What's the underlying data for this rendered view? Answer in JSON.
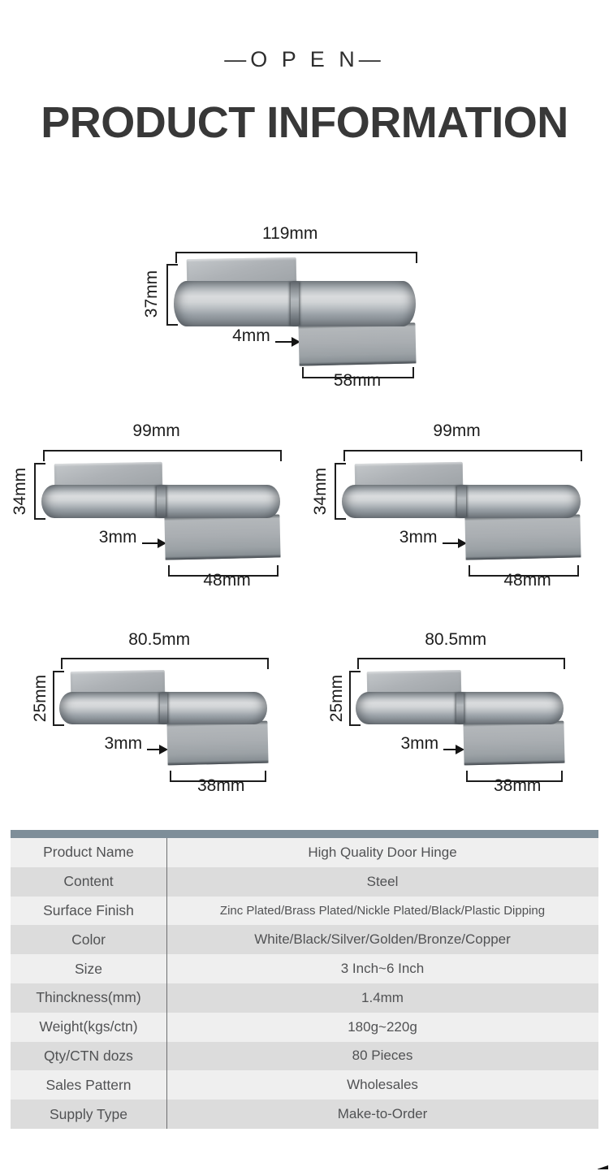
{
  "header": {
    "eyebrow": "—O P E N—",
    "title": "PRODUCT INFORMATION"
  },
  "hinges": [
    {
      "width_label": "119mm",
      "height_label": "37mm",
      "thickness_label": "4mm",
      "leaf_label": "58mm"
    },
    {
      "width_label": "99mm",
      "height_label": "34mm",
      "thickness_label": "3mm",
      "leaf_label": "48mm"
    },
    {
      "width_label": "99mm",
      "height_label": "34mm",
      "thickness_label": "3mm",
      "leaf_label": "48mm"
    },
    {
      "width_label": "80.5mm",
      "height_label": "25mm",
      "thickness_label": "3mm",
      "leaf_label": "38mm"
    },
    {
      "width_label": "80.5mm",
      "height_label": "25mm",
      "thickness_label": "3mm",
      "leaf_label": "38mm"
    }
  ],
  "spec_table": {
    "rows": [
      {
        "label": "Product Name",
        "value": "High Quality Door Hinge"
      },
      {
        "label": "Content",
        "value": "Steel"
      },
      {
        "label": "Surface Finish",
        "value": "Zinc Plated/Brass Plated/Nickle Plated/Black/Plastic Dipping"
      },
      {
        "label": "Color",
        "value": "White/Black/Silver/Golden/Bronze/Copper"
      },
      {
        "label": "Size",
        "value": "3 Inch~6 Inch"
      },
      {
        "label": "Thinckness(mm)",
        "value": "1.4mm"
      },
      {
        "label": "Weight(kgs/ctn)",
        "value": "180g~220g"
      },
      {
        "label": "Qty/CTN dozs",
        "value": "80 Pieces"
      },
      {
        "label": "Sales Pattern",
        "value": "Wholesales"
      },
      {
        "label": "Supply Type",
        "value": "Make-to-Order"
      }
    ]
  },
  "colors": {
    "table_header_bar": "#7e8e99",
    "row_light": "#efefef",
    "row_dark": "#dcdcdc",
    "dimension_ink": "#1d1d1d",
    "table_text": "#515254"
  }
}
